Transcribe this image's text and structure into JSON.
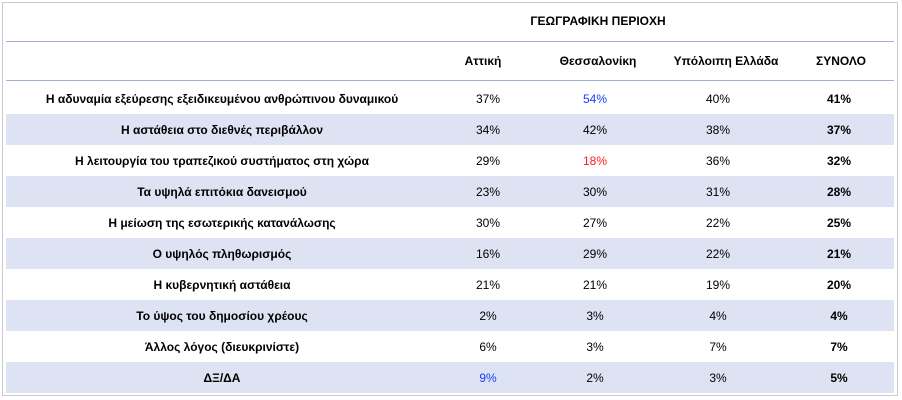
{
  "chart_data": {
    "type": "table",
    "title": "ΓΕΩΓΡΑΦΙΚΗ ΠΕΡΙΟΧΗ",
    "columns": [
      "Αττική",
      "Θεσσαλονίκη",
      "Υπόλοιπη Ελλάδα",
      "ΣΥΝΟΛΟ"
    ],
    "rows": [
      {
        "label": "Η αδυναμία εξεύρεσης εξειδικευμένου ανθρώπινου δυναμικού",
        "values": [
          "37%",
          "54%",
          "40%",
          "41%"
        ]
      },
      {
        "label": "Η αστάθεια στο διεθνές περιβάλλον",
        "values": [
          "34%",
          "42%",
          "38%",
          "37%"
        ]
      },
      {
        "label": "Η λειτουργία του τραπεζικού συστήματος στη χώρα",
        "values": [
          "29%",
          "18%",
          "36%",
          "32%"
        ]
      },
      {
        "label": "Τα υψηλά επιτόκια δανεισμού",
        "values": [
          "23%",
          "30%",
          "31%",
          "28%"
        ]
      },
      {
        "label": "Η μείωση της εσωτερικής κατανάλωσης",
        "values": [
          "30%",
          "27%",
          "22%",
          "25%"
        ]
      },
      {
        "label": "Ο υψηλός πληθωρισμός",
        "values": [
          "16%",
          "29%",
          "22%",
          "21%"
        ]
      },
      {
        "label": "Η κυβερνητική αστάθεια",
        "values": [
          "21%",
          "21%",
          "19%",
          "20%"
        ]
      },
      {
        "label": "Το ύψος του δημοσίου χρέους",
        "values": [
          "2%",
          "3%",
          "4%",
          "4%"
        ]
      },
      {
        "label": "Άλλος λόγος (διευκρινίστε)",
        "values": [
          "6%",
          "3%",
          "7%",
          "7%"
        ]
      },
      {
        "label": "ΔΞ/ΔΑ",
        "values": [
          "9%",
          "2%",
          "3%",
          "5%"
        ]
      }
    ],
    "highlights": [
      {
        "row": 0,
        "col": 1,
        "color": "#1a3cff"
      },
      {
        "row": 2,
        "col": 1,
        "color": "#ff1a1a"
      },
      {
        "row": 9,
        "col": 0,
        "color": "#1a3cff"
      }
    ],
    "stripe_color": "#dde3f2"
  }
}
